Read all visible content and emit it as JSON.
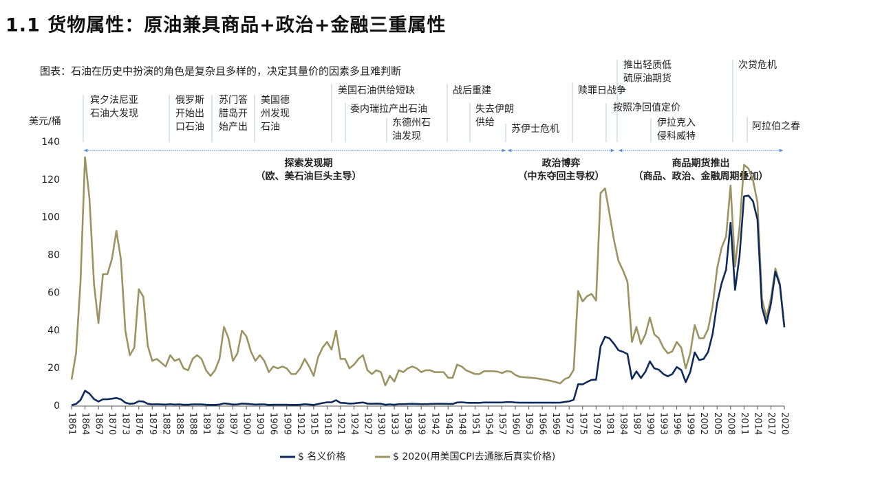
{
  "chart_data": {
    "type": "line",
    "title": "1.1 货物属性：原油兼具商品+政治+金融三重属性",
    "subtitle": "图表：石油在历史中扮演的角色是复杂且多样的，决定其量价的因素多且难判断",
    "y_label": "美元/桶",
    "annotations": [
      [
        "宾夕法尼亚",
        "石油大发现"
      ],
      [
        "俄罗斯",
        "开始出",
        "口石油"
      ],
      [
        "苏门答",
        "腊岛开",
        "始产出"
      ],
      [
        "美国德",
        "州发现",
        "石油"
      ],
      [
        "美国石油供给短缺"
      ],
      [
        "委内瑞拉产出石油"
      ],
      [
        "东德州石",
        "油发现"
      ],
      [
        "战后重建"
      ],
      [
        "失去伊朗",
        "供给"
      ],
      [
        "苏伊士危机"
      ],
      [
        "赎罪日战争"
      ],
      [
        "推出轻质低",
        "硫原油期货"
      ],
      [
        "按照净回值定价"
      ],
      [
        "伊拉克入",
        "侵科威特"
      ],
      [
        "次贷危机"
      ],
      [
        "阿拉伯之春"
      ]
    ],
    "periods": [
      [
        "探索发现期",
        "（欧、美石油巨头主导）"
      ],
      [
        "政治博弈",
        "（中东夺回主导权）"
      ],
      [
        "商品期货推出",
        "（商品、政治、金融周期叠加）"
      ]
    ],
    "x": [
      1861,
      1862,
      1863,
      1864,
      1865,
      1866,
      1867,
      1868,
      1869,
      1870,
      1871,
      1872,
      1873,
      1874,
      1875,
      1876,
      1877,
      1878,
      1879,
      1880,
      1881,
      1882,
      1883,
      1884,
      1885,
      1886,
      1887,
      1888,
      1889,
      1890,
      1891,
      1892,
      1893,
      1894,
      1895,
      1896,
      1897,
      1898,
      1899,
      1900,
      1901,
      1902,
      1903,
      1904,
      1905,
      1906,
      1907,
      1908,
      1909,
      1910,
      1911,
      1912,
      1913,
      1914,
      1915,
      1916,
      1917,
      1918,
      1919,
      1920,
      1921,
      1922,
      1923,
      1924,
      1925,
      1926,
      1927,
      1928,
      1929,
      1930,
      1931,
      1932,
      1933,
      1934,
      1935,
      1936,
      1937,
      1938,
      1939,
      1940,
      1941,
      1942,
      1943,
      1944,
      1945,
      1946,
      1947,
      1948,
      1949,
      1950,
      1951,
      1952,
      1953,
      1954,
      1955,
      1956,
      1957,
      1958,
      1959,
      1960,
      1961,
      1962,
      1963,
      1964,
      1965,
      1966,
      1967,
      1968,
      1969,
      1970,
      1971,
      1972,
      1973,
      1974,
      1975,
      1976,
      1977,
      1978,
      1979,
      1980,
      1981,
      1982,
      1983,
      1984,
      1985,
      1986,
      1987,
      1988,
      1989,
      1990,
      1991,
      1992,
      1993,
      1994,
      1995,
      1996,
      1997,
      1998,
      1999,
      2000,
      2001,
      2002,
      2003,
      2004,
      2005,
      2006,
      2007,
      2008,
      2009,
      2010,
      2011,
      2012,
      2013,
      2014,
      2015,
      2016,
      2017,
      2018,
      2019,
      2020
    ],
    "series": [
      {
        "name": "$ 名义价格",
        "color": "#0e2a5a",
        "values": [
          0.5,
          1.1,
          3.2,
          8.1,
          6.6,
          3.7,
          2.4,
          3.6,
          3.6,
          3.9,
          4.3,
          3.6,
          1.8,
          1.2,
          1.4,
          2.6,
          2.4,
          1.2,
          0.9,
          1,
          0.9,
          0.8,
          1,
          0.8,
          0.9,
          0.7,
          0.7,
          0.9,
          0.9,
          0.9,
          0.7,
          0.6,
          0.6,
          0.8,
          1.4,
          1.2,
          0.8,
          0.9,
          1.3,
          1.2,
          1,
          0.8,
          0.9,
          0.9,
          0.6,
          0.7,
          0.7,
          0.7,
          0.7,
          0.6,
          0.6,
          0.7,
          1,
          0.8,
          0.6,
          1.1,
          1.6,
          2,
          2,
          3.1,
          1.7,
          1.6,
          1.3,
          1.4,
          1.7,
          1.9,
          1.3,
          1.2,
          1.3,
          1.2,
          0.7,
          0.9,
          0.7,
          1,
          1,
          1.1,
          1.2,
          1.1,
          1,
          1,
          1.1,
          1.2,
          1.2,
          1.2,
          1.1,
          1.1,
          1.9,
          2,
          1.8,
          1.7,
          1.7,
          1.7,
          1.9,
          1.9,
          1.9,
          1.9,
          1.9,
          2.1,
          2.1,
          1.9,
          1.8,
          1.8,
          1.8,
          1.8,
          1.8,
          1.8,
          1.8,
          1.8,
          1.8,
          1.8,
          2.2,
          2.5,
          3.3,
          11.6,
          11.5,
          12.8,
          13.9,
          14,
          31.6,
          36.8,
          35.9,
          33,
          29.6,
          28.8,
          27.6,
          14.4,
          18.4,
          14.9,
          18.2,
          23.7,
          20,
          19.3,
          17,
          15.8,
          17,
          20.7,
          19.1,
          12.7,
          18,
          28.5,
          24.4,
          25,
          28.8,
          38.3,
          54.5,
          65.1,
          72.4,
          97.3,
          61.7,
          79.5,
          111.3,
          111.7,
          108.7,
          99,
          52.4,
          43.7,
          54.2,
          71.3,
          64.2,
          41.8
        ]
      },
      {
        "name": "$ 2020(用美国CPI去通胀后真实价格)",
        "color": "#9c9262",
        "values": [
          14,
          28,
          66,
          132,
          110,
          65,
          44,
          70,
          70,
          78,
          93,
          78,
          40,
          27,
          31,
          62,
          58,
          32,
          24,
          25,
          23,
          21,
          27,
          24,
          25,
          20,
          19,
          25,
          27,
          25,
          19,
          16,
          19,
          25,
          42,
          36,
          24,
          28,
          40,
          37,
          29,
          24,
          27,
          24,
          18,
          21,
          20,
          21,
          20,
          17,
          17,
          20,
          25,
          21,
          16,
          26,
          31,
          34,
          30,
          40,
          25,
          25,
          20,
          22,
          25,
          27,
          19,
          17,
          19,
          18,
          11,
          16,
          13,
          19,
          18,
          20,
          21,
          20,
          18,
          19,
          19,
          18,
          18,
          18,
          15,
          15,
          22,
          21,
          19,
          18,
          17,
          17,
          18.5,
          18.5,
          18.5,
          18.3,
          17.5,
          18.5,
          18.3,
          16.5,
          15.5,
          15.3,
          15.1,
          14.9,
          14.6,
          14.2,
          13.8,
          13.3,
          12.7,
          12,
          14.3,
          15.3,
          19.2,
          61,
          55.5,
          58.3,
          59.5,
          56,
          113,
          115.5,
          102,
          88,
          77,
          72,
          66,
          34,
          42,
          33,
          38,
          47,
          38,
          36,
          31,
          28,
          29,
          34,
          31,
          20,
          28,
          43,
          36,
          36,
          41,
          53,
          73,
          84,
          90,
          117,
          74,
          95,
          128,
          126,
          120,
          108,
          57,
          47,
          57,
          73,
          65,
          42
        ]
      }
    ],
    "xlim": [
      1861,
      2020
    ],
    "xticks": [
      1861,
      1864,
      1867,
      1870,
      1873,
      1876,
      1879,
      1882,
      1885,
      1888,
      1891,
      1894,
      1897,
      1900,
      1903,
      1906,
      1909,
      1912,
      1915,
      1918,
      1921,
      1924,
      1927,
      1930,
      1933,
      1936,
      1939,
      1942,
      1945,
      1948,
      1951,
      1954,
      1957,
      1960,
      1963,
      1966,
      1969,
      1972,
      1975,
      1978,
      1981,
      1984,
      1987,
      1990,
      1993,
      1996,
      1999,
      2002,
      2005,
      2008,
      2011,
      2014,
      2017,
      2020
    ],
    "ylim": [
      0,
      140
    ],
    "yticks": [
      0,
      20,
      40,
      60,
      80,
      100,
      120,
      140
    ],
    "grid": false,
    "legend": "bottom"
  }
}
